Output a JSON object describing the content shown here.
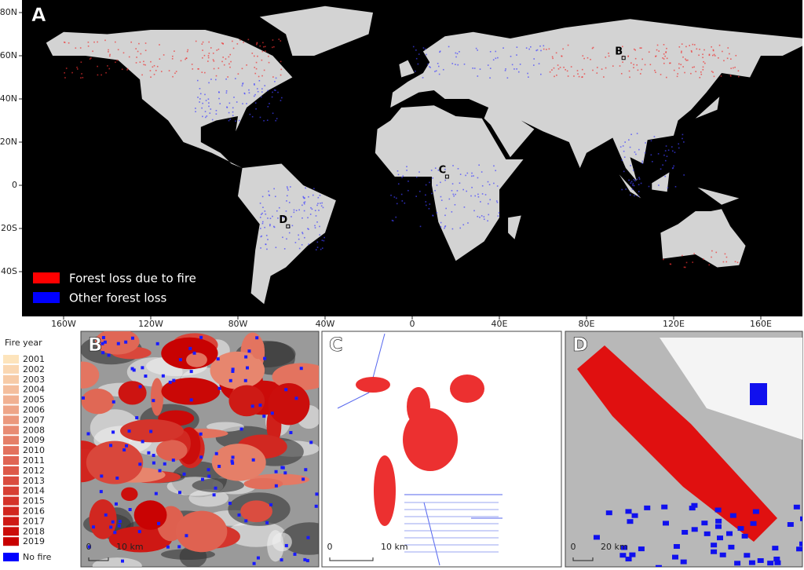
{
  "map": {
    "panel_label": "A",
    "lat_ticks": [
      "80N",
      "60N",
      "40N",
      "20N",
      "0",
      "20S",
      "40S"
    ],
    "lon_ticks": [
      "160W",
      "120W",
      "80W",
      "40W",
      "0",
      "40E",
      "80E",
      "120E",
      "160E"
    ],
    "legend": [
      {
        "label": "Forest loss due to fire",
        "color": "#ff0000"
      },
      {
        "label": "Other forest loss",
        "color": "#0000ff"
      }
    ],
    "markers": [
      "B",
      "C",
      "D"
    ]
  },
  "fire_legend": {
    "title": "Fire year",
    "years": [
      "2001",
      "2002",
      "2003",
      "2004",
      "2005",
      "2006",
      "2007",
      "2008",
      "2009",
      "2010",
      "2011",
      "2012",
      "2013",
      "2014",
      "2015",
      "2016",
      "2017",
      "2018",
      "2019"
    ],
    "no_fire": "No fire"
  },
  "insets": [
    {
      "label": "B",
      "scale_start": "0",
      "scale_end": "10 km"
    },
    {
      "label": "C",
      "scale_start": "0",
      "scale_end": "10 km"
    },
    {
      "label": "D",
      "scale_start": "0",
      "scale_end": "20 km"
    }
  ]
}
